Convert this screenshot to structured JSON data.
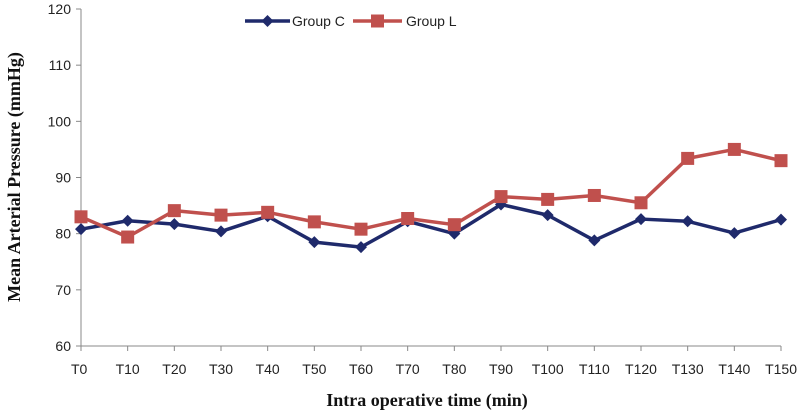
{
  "chart_data": {
    "type": "line",
    "title": "",
    "xlabel": "Intra operative time (min)",
    "ylabel": "Mean Arterial Pressure (mmHg)",
    "ylim": [
      60,
      120
    ],
    "yticks": [
      60,
      70,
      80,
      90,
      100,
      110,
      120
    ],
    "grid": false,
    "legend_position": "top-center",
    "categories": [
      "T0",
      "T10",
      "T20",
      "T30",
      "T40",
      "T50",
      "T60",
      "T70",
      "T80",
      "T90",
      "T100",
      "T110",
      "T120",
      "T130",
      "T140",
      "T150"
    ],
    "series": [
      {
        "name": "Group C",
        "color": "#1f2a6b",
        "marker": "diamond",
        "values": [
          80.8,
          82.3,
          81.7,
          80.4,
          83.1,
          78.5,
          77.6,
          82.2,
          80.0,
          85.2,
          83.3,
          78.8,
          82.6,
          82.2,
          80.1,
          82.5
        ]
      },
      {
        "name": "Group L",
        "color": "#c0504d",
        "marker": "square",
        "values": [
          83.0,
          79.4,
          84.1,
          83.3,
          83.8,
          82.1,
          80.8,
          82.7,
          81.6,
          86.6,
          86.1,
          86.8,
          85.5,
          93.4,
          95.0,
          93.0
        ]
      }
    ]
  }
}
